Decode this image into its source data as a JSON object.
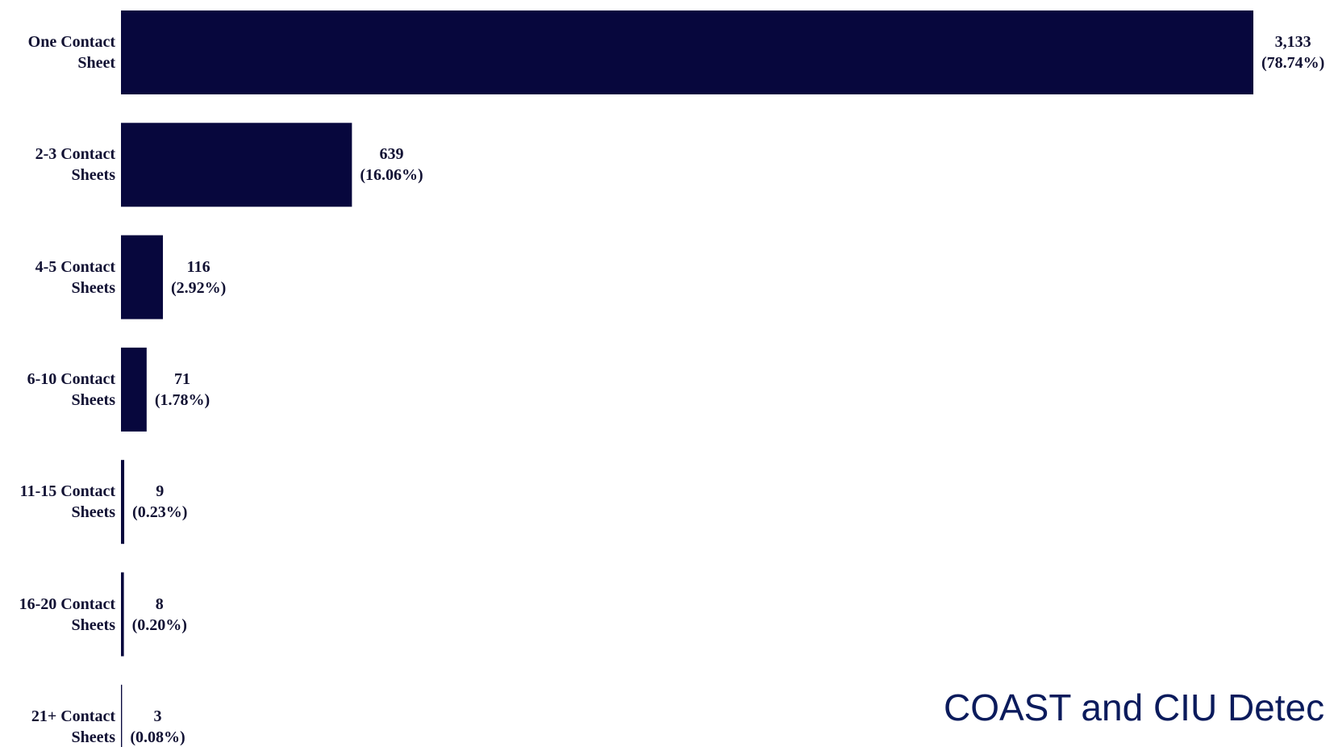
{
  "chart_data": {
    "type": "bar",
    "orientation": "horizontal",
    "categories": [
      "One Contact\nSheet",
      "2-3 Contact\nSheets",
      "4-5 Contact\nSheets",
      "6-10 Contact\nSheets",
      "11-15 Contact\nSheets",
      "16-20 Contact\nSheets",
      "21+ Contact\nSheets"
    ],
    "values": [
      3133,
      639,
      116,
      71,
      9,
      8,
      3
    ],
    "value_labels": [
      "3,133",
      "639",
      "116",
      "71",
      "9",
      "8",
      "3"
    ],
    "percent_labels": [
      "(78.74%)",
      "(16.06%)",
      "(2.92%)",
      "(1.78%)",
      "(0.23%)",
      "(0.20%)",
      "(0.08%)"
    ],
    "color": "#07073d",
    "annotation": "COAST and CIU Detec"
  }
}
